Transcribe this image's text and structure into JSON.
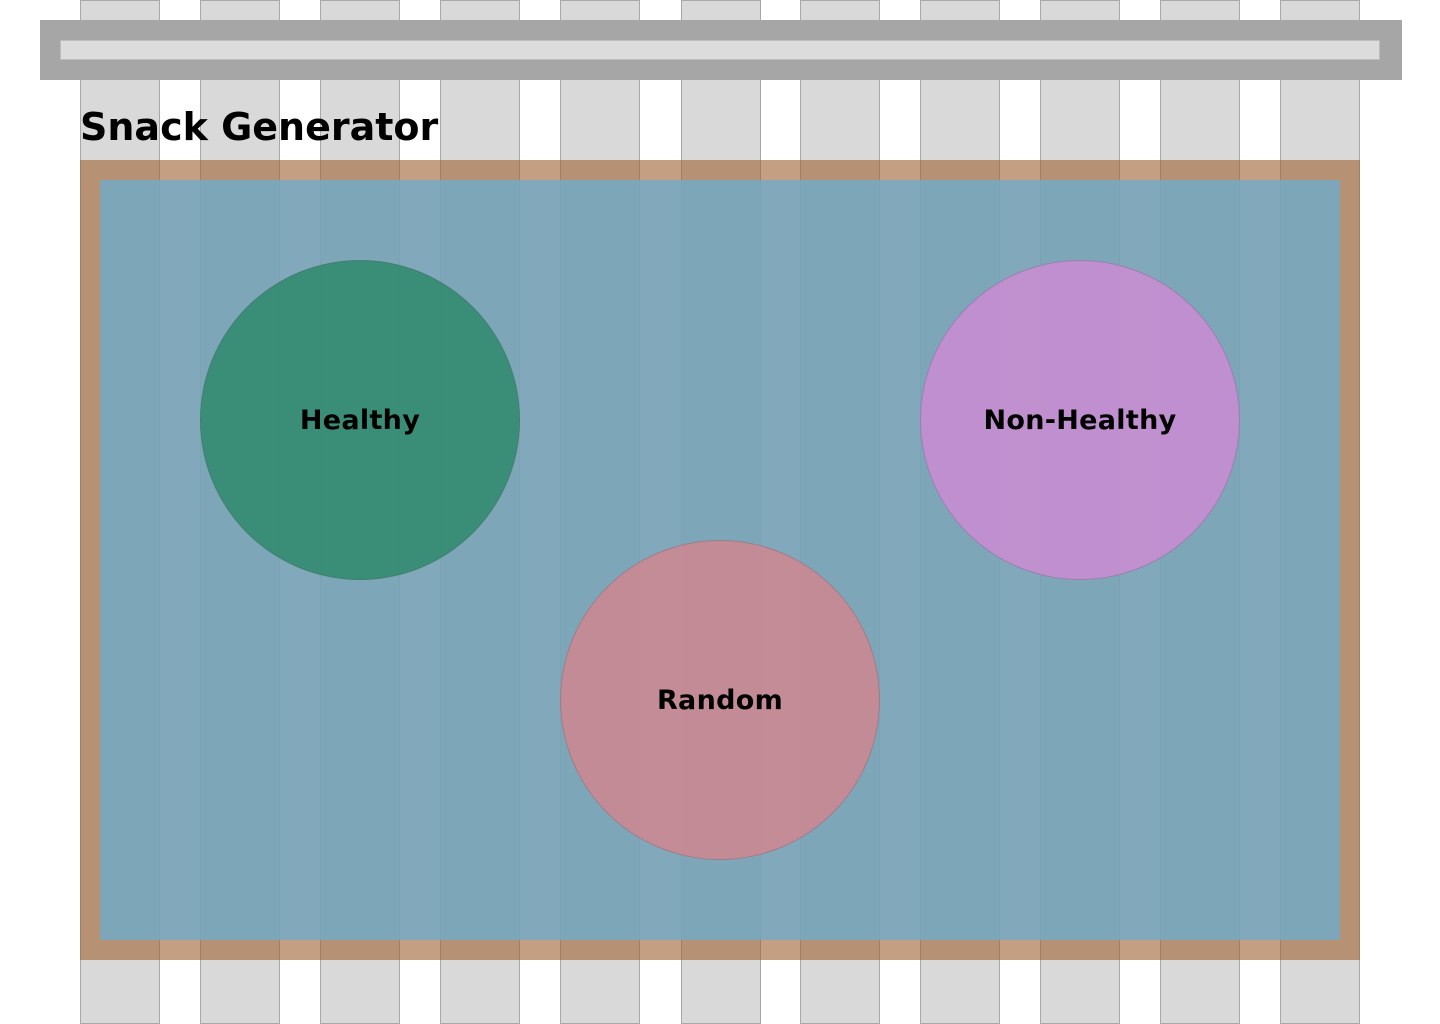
{
  "page": {
    "title": "Snack Generator"
  },
  "colors": {
    "header_bar": "#a6a6a6",
    "header_input": "#dcdcdc",
    "grid_column": "#d9d9d9",
    "board_frame": "#a9876a",
    "board_surface": "#82b5ca",
    "healthy": "#3f977f",
    "non_healthy": "#bf8fc8",
    "random": "#c38b93"
  },
  "options": [
    {
      "id": "healthy",
      "label": "Healthy",
      "color": "#3f977f"
    },
    {
      "id": "nonhealthy",
      "label": "Non-Healthy",
      "color": "#bf8fc8"
    },
    {
      "id": "random",
      "label": "Random",
      "color": "#c38b93"
    }
  ]
}
